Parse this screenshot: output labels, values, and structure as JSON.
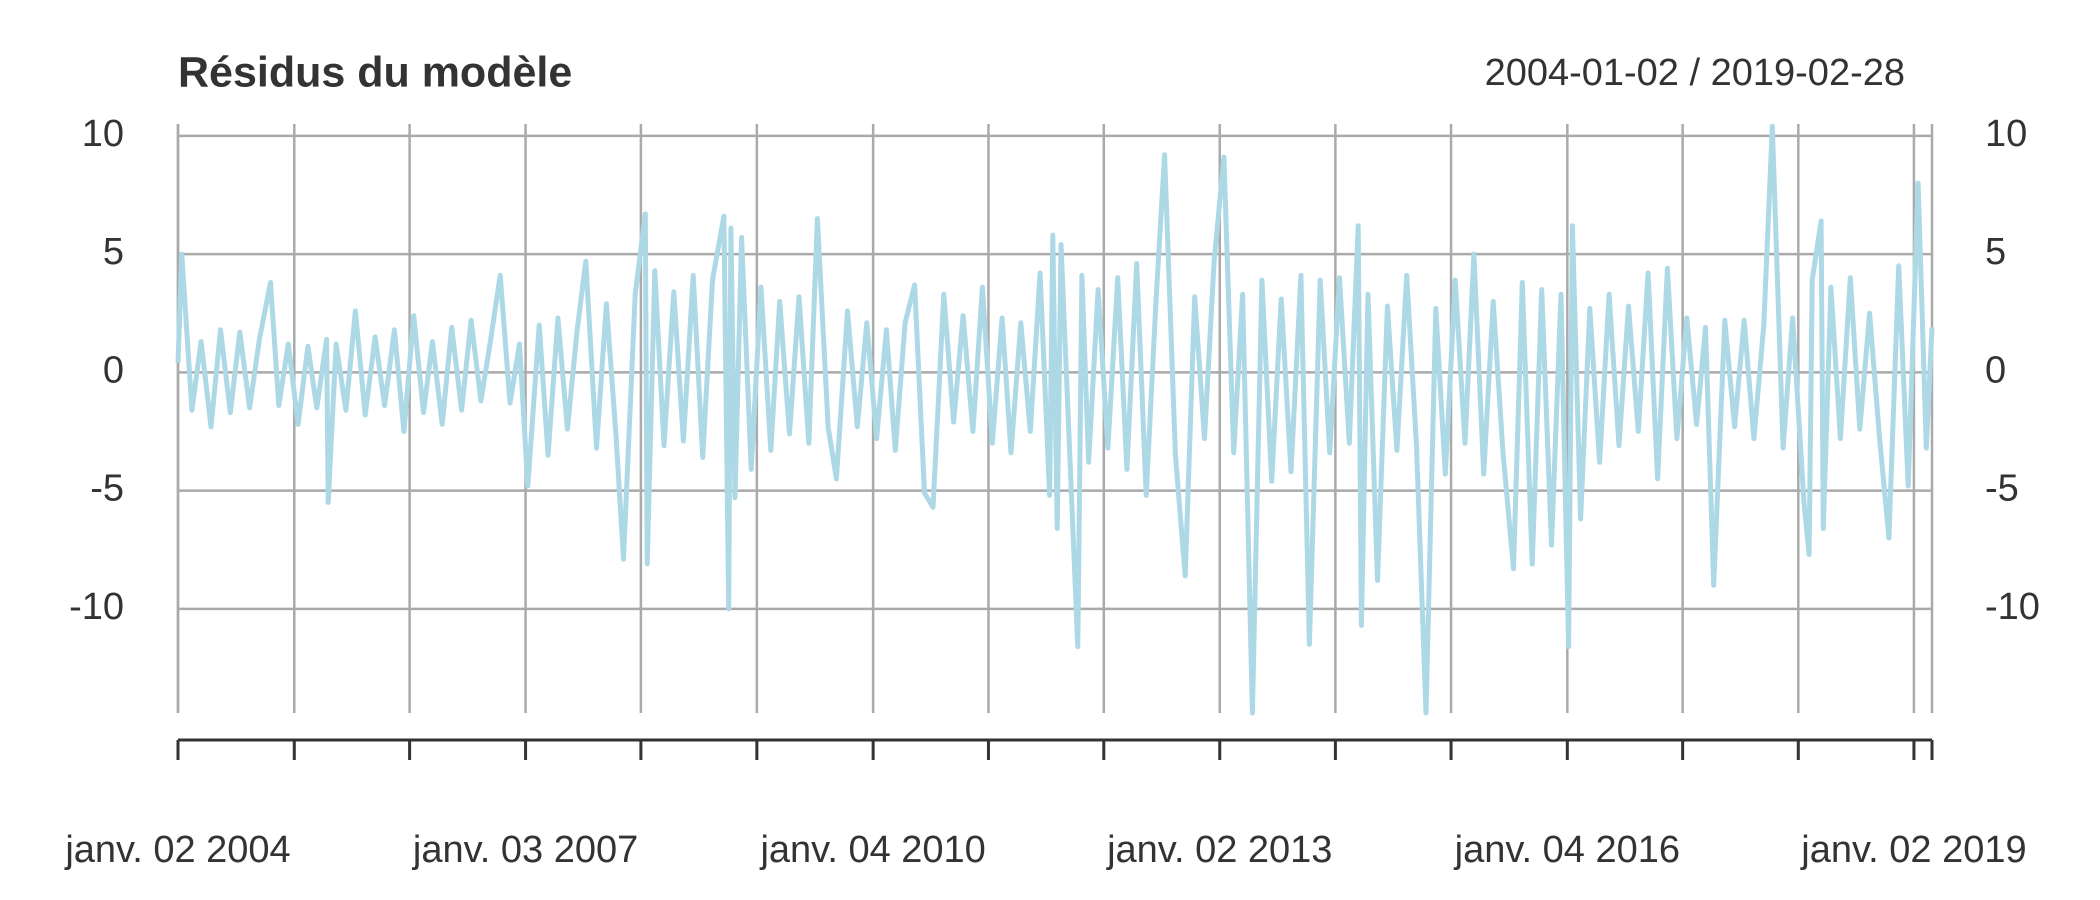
{
  "chart_data": {
    "type": "line",
    "title": "Résidus du modèle",
    "subtitle": "2004-01-02 / 2019-02-28",
    "xlim": [
      "2004-01-02",
      "2019-02-28"
    ],
    "xticks": [
      {
        "value": "2004-01-02",
        "label": "janv. 02 2004"
      },
      {
        "value": "2007-01-03",
        "label": "janv. 03 2007"
      },
      {
        "value": "2010-01-04",
        "label": "janv. 04 2010"
      },
      {
        "value": "2013-01-02",
        "label": "janv. 02 2013"
      },
      {
        "value": "2016-01-04",
        "label": "janv. 04 2016"
      },
      {
        "value": "2019-01-02",
        "label": "janv. 02 2019"
      }
    ],
    "xgrid": [
      "2004-01-02",
      "2005-01-03",
      "2006-01-02",
      "2007-01-03",
      "2008-01-02",
      "2009-01-02",
      "2010-01-04",
      "2011-01-03",
      "2012-01-02",
      "2013-01-02",
      "2014-01-02",
      "2015-01-02",
      "2016-01-04",
      "2017-01-02",
      "2018-01-02",
      "2019-01-02"
    ],
    "ylim": [
      -14.4,
      10.5
    ],
    "yticks": [
      -10,
      -5,
      0,
      5,
      10
    ],
    "grid": true,
    "x": [
      "2004-01-02",
      "2004-01-14",
      "2004-02-15",
      "2004-03-15",
      "2004-04-15",
      "2004-05-15",
      "2004-06-15",
      "2004-07-15",
      "2004-08-15",
      "2004-09-15",
      "2004-10-20",
      "2004-11-15",
      "2004-12-15",
      "2005-01-15",
      "2005-02-15",
      "2005-03-15",
      "2005-04-15",
      "2005-04-20",
      "2005-05-15",
      "2005-06-15",
      "2005-07-15",
      "2005-08-15",
      "2005-09-15",
      "2005-10-15",
      "2005-11-15",
      "2005-12-15",
      "2006-01-15",
      "2006-02-15",
      "2006-03-15",
      "2006-04-15",
      "2006-05-15",
      "2006-06-15",
      "2006-07-15",
      "2006-08-15",
      "2006-09-15",
      "2006-10-15",
      "2006-11-15",
      "2006-12-15",
      "2007-01-10",
      "2007-02-15",
      "2007-03-15",
      "2007-04-15",
      "2007-05-15",
      "2007-06-15",
      "2007-07-12",
      "2007-08-15",
      "2007-09-15",
      "2007-10-15",
      "2007-11-08",
      "2007-12-15",
      "2008-01-16",
      "2008-01-22",
      "2008-02-15",
      "2008-03-15",
      "2008-04-15",
      "2008-05-15",
      "2008-06-15",
      "2008-07-15",
      "2008-08-15",
      "2008-09-20",
      "2008-10-05",
      "2008-10-12",
      "2008-10-25",
      "2008-11-15",
      "2008-12-15",
      "2009-01-15",
      "2009-02-15",
      "2009-03-15",
      "2009-04-15",
      "2009-05-15",
      "2009-06-15",
      "2009-07-12",
      "2009-08-15",
      "2009-09-10",
      "2009-10-15",
      "2009-11-15",
      "2009-12-15",
      "2010-01-15",
      "2010-02-15",
      "2010-03-15",
      "2010-04-15",
      "2010-05-15",
      "2010-06-15",
      "2010-07-12",
      "2010-08-15",
      "2010-09-15",
      "2010-10-15",
      "2010-11-15",
      "2010-12-15",
      "2011-01-15",
      "2011-02-15",
      "2011-03-15",
      "2011-04-15",
      "2011-05-15",
      "2011-06-15",
      "2011-07-15",
      "2011-07-25",
      "2011-08-08",
      "2011-08-20",
      "2011-10-12",
      "2011-10-25",
      "2011-11-15",
      "2011-12-15",
      "2012-01-15",
      "2012-02-15",
      "2012-03-15",
      "2012-04-15",
      "2012-05-15",
      "2012-06-15",
      "2012-07-12",
      "2012-08-15",
      "2012-09-15",
      "2012-10-15",
      "2012-11-15",
      "2012-12-15",
      "2013-01-15",
      "2013-02-15",
      "2013-03-15",
      "2013-04-15",
      "2013-05-15",
      "2013-06-15",
      "2013-07-15",
      "2013-08-15",
      "2013-09-15",
      "2013-10-12",
      "2013-11-15",
      "2013-12-15",
      "2014-01-15",
      "2014-02-15",
      "2014-03-15",
      "2014-03-25",
      "2014-04-15",
      "2014-05-15",
      "2014-06-15",
      "2014-07-15",
      "2014-08-15",
      "2014-09-15",
      "2014-10-15",
      "2014-11-15",
      "2014-12-15",
      "2015-01-15",
      "2015-02-15",
      "2015-03-15",
      "2015-04-15",
      "2015-05-15",
      "2015-06-15",
      "2015-07-18",
      "2015-08-15",
      "2015-09-15",
      "2015-10-15",
      "2015-11-15",
      "2015-12-15",
      "2016-01-08",
      "2016-01-20",
      "2016-02-15",
      "2016-03-15",
      "2016-04-15",
      "2016-05-15",
      "2016-06-15",
      "2016-07-15",
      "2016-08-15",
      "2016-09-15",
      "2016-10-15",
      "2016-11-15",
      "2016-12-15",
      "2017-01-15",
      "2017-02-15",
      "2017-03-15",
      "2017-04-10",
      "2017-05-15",
      "2017-06-15",
      "2017-07-15",
      "2017-08-15",
      "2017-09-15",
      "2017-10-12",
      "2017-11-15",
      "2017-12-15",
      "2018-01-20",
      "2018-02-05",
      "2018-02-15",
      "2018-03-15",
      "2018-03-22",
      "2018-04-15",
      "2018-05-15",
      "2018-06-15",
      "2018-07-15",
      "2018-08-15",
      "2018-09-15",
      "2018-10-15",
      "2018-11-15",
      "2018-12-15",
      "2019-01-15",
      "2019-02-10",
      "2019-02-28"
    ],
    "series": [
      {
        "color": "#add8e6",
        "values": [
          0.4,
          5.0,
          -1.6,
          1.3,
          -2.3,
          1.8,
          -1.7,
          1.7,
          -1.5,
          1.4,
          3.8,
          -1.4,
          1.2,
          -2.2,
          1.1,
          -1.5,
          1.4,
          -5.5,
          1.2,
          -1.6,
          2.6,
          -1.8,
          1.5,
          -1.4,
          1.8,
          -2.5,
          2.4,
          -1.7,
          1.3,
          -2.2,
          1.9,
          -1.6,
          2.2,
          -1.2,
          1.4,
          4.1,
          -1.3,
          1.2,
          -4.8,
          2.0,
          -3.5,
          2.3,
          -2.4,
          1.8,
          4.7,
          -3.2,
          2.9,
          -2.6,
          -7.9,
          3.3,
          6.7,
          -8.1,
          4.3,
          -3.1,
          3.4,
          -2.9,
          4.1,
          -3.6,
          3.9,
          6.6,
          -10.0,
          6.1,
          -5.3,
          5.7,
          -4.1,
          3.6,
          -3.3,
          3.0,
          -2.6,
          3.2,
          -3.0,
          6.5,
          -2.3,
          -4.5,
          2.6,
          -2.3,
          2.1,
          -2.8,
          1.8,
          -3.3,
          2.1,
          3.7,
          -5.1,
          -5.7,
          3.3,
          -2.1,
          2.4,
          -2.5,
          3.6,
          -3.0,
          2.3,
          -3.4,
          2.1,
          -2.5,
          4.2,
          -5.2,
          5.8,
          -6.6,
          5.4,
          -11.6,
          4.1,
          -3.8,
          3.5,
          -3.2,
          4.0,
          -4.1,
          4.6,
          -5.2,
          3.1,
          9.2,
          -3.5,
          -8.6,
          3.2,
          -2.8,
          4.7,
          9.1,
          -3.4,
          3.3,
          -14.4,
          3.9,
          -4.6,
          3.1,
          -4.2,
          4.1,
          -11.5,
          3.9,
          -3.4,
          4.0,
          -3.0,
          6.2,
          -10.7,
          3.3,
          -8.8,
          2.8,
          -3.3,
          4.1,
          -3.1,
          -14.4,
          2.7,
          -4.3,
          3.9,
          -3.0,
          5.0,
          -4.3,
          3.0,
          -3.4,
          -8.3,
          3.8,
          -8.1,
          3.5,
          -7.3,
          3.3,
          -11.6,
          6.2,
          -6.2,
          2.7,
          -3.8,
          3.3,
          -3.1,
          2.8,
          -2.5,
          4.2,
          -4.5,
          4.4,
          -2.8,
          2.3,
          -2.2,
          1.9,
          -9.0,
          2.2,
          -2.3,
          2.2,
          -2.8,
          2.0,
          10.4,
          -3.2,
          2.3,
          -5.5,
          -7.7,
          3.9,
          6.4,
          -6.6,
          3.6,
          -2.8,
          4.0,
          -2.4,
          2.5,
          -2.7,
          -7.0,
          4.5,
          -4.8,
          8.0,
          -3.2,
          1.9
        ]
      }
    ]
  }
}
